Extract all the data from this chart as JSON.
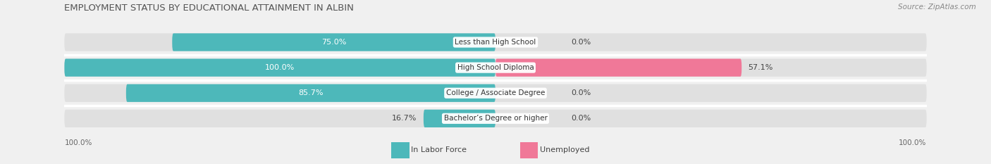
{
  "title": "EMPLOYMENT STATUS BY EDUCATIONAL ATTAINMENT IN ALBIN",
  "source": "Source: ZipAtlas.com",
  "categories": [
    "Less than High School",
    "High School Diploma",
    "College / Associate Degree",
    "Bachelor’s Degree or higher"
  ],
  "labor_force": [
    75.0,
    100.0,
    85.7,
    16.7
  ],
  "unemployed": [
    0.0,
    57.1,
    0.0,
    0.0
  ],
  "labor_force_color": "#4db8ba",
  "unemployed_color": "#f07898",
  "bg_color": "#f0f0f0",
  "bar_bg_color": "#e0e0e0",
  "axis_max": 100.0,
  "bar_height": 0.7,
  "legend_labor": "In Labor Force",
  "legend_unemployed": "Unemployed",
  "title_fontsize": 9.5,
  "source_fontsize": 7.5,
  "bar_label_fontsize": 8,
  "cat_label_fontsize": 7.5,
  "tick_fontsize": 7.5,
  "legend_fontsize": 8
}
